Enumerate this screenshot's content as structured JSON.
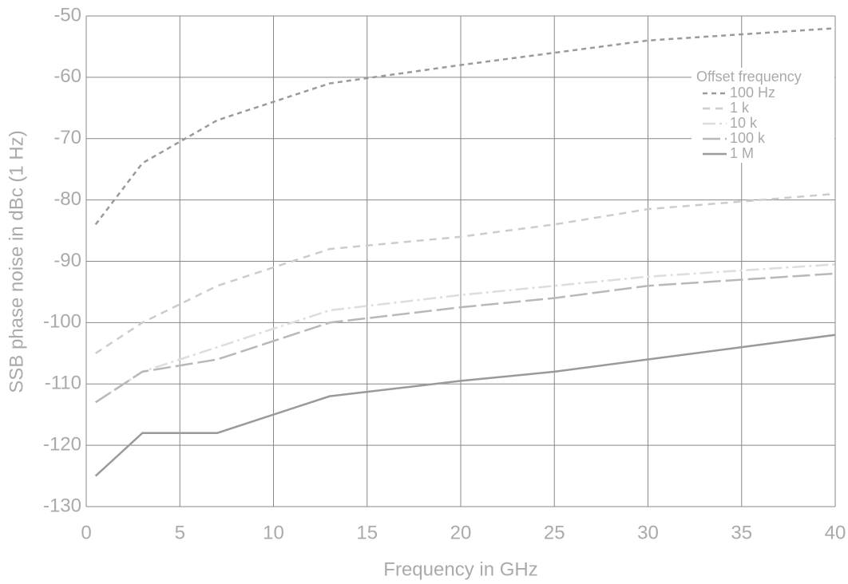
{
  "chart_data": {
    "type": "line",
    "x_label": "Frequency in GHz",
    "y_label": "SSB phase noise in dBc (1 Hz)",
    "x": [
      0.5,
      3,
      7,
      13,
      20,
      25,
      30,
      40
    ],
    "xlim": [
      0,
      40
    ],
    "xticks": [
      0,
      5,
      10,
      15,
      20,
      25,
      30,
      35,
      40
    ],
    "ylim": [
      -130,
      -50
    ],
    "yticks": [
      -130,
      -120,
      -110,
      -100,
      -90,
      -80,
      -70,
      -60,
      -50
    ],
    "grid": true,
    "legend_title": "Offset frequency",
    "legend_position": "upper right",
    "series": [
      {
        "name": "100 Hz",
        "color": "#9a9a9a",
        "dash": "6,5",
        "values": [
          -84,
          -74,
          -67,
          -61,
          -58,
          -56,
          -54,
          -52
        ]
      },
      {
        "name": "1 k",
        "color": "#cccccc",
        "dash": "9,7",
        "values": [
          -105,
          -100,
          -94,
          -88,
          -86,
          -84,
          -81.5,
          -79
        ]
      },
      {
        "name": "10 k",
        "color": "#dddddd",
        "dash": "16,5,3,5",
        "values": [
          -113,
          -108,
          -104,
          -98,
          -95.5,
          -94,
          -92.5,
          -90.5
        ]
      },
      {
        "name": "100 k",
        "color": "#b8b8b8",
        "dash": "22,6",
        "values": [
          -113,
          -108,
          -106,
          -100,
          -97.5,
          -96,
          -94,
          -92
        ]
      },
      {
        "name": "1 M",
        "color": "#9a9a9a",
        "dash": "",
        "values": [
          -125,
          -118,
          -118,
          -112,
          -109.5,
          -108,
          -106,
          -102
        ]
      }
    ]
  }
}
